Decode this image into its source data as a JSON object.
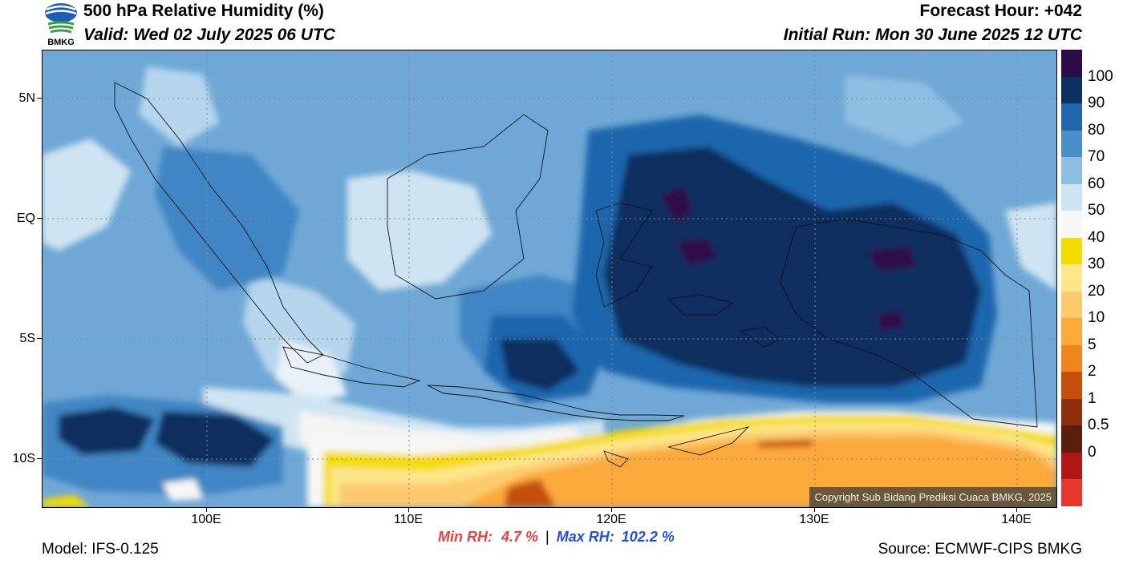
{
  "header": {
    "title": "500 hPa Relative Humidity (%)",
    "valid": "Valid: Wed 02 July 2025 06 UTC",
    "forecast_hour": "Forecast Hour: +042",
    "initial_run": "Initial Run: Mon 30 June 2025 12 UTC",
    "logo_text": "BMKG"
  },
  "map": {
    "lat_labels": [
      "5N",
      "EQ",
      "5S",
      "10S"
    ],
    "lon_labels": [
      "100E",
      "110E",
      "120E",
      "130E",
      "140E"
    ],
    "copyright": "Copyright Sub Bidang Prediksi Cuaca BMKG, 2025"
  },
  "colorbar": {
    "labels": [
      "100",
      "90",
      "80",
      "70",
      "60",
      "50",
      "40",
      "30",
      "20",
      "10",
      "5",
      "2",
      "1",
      "0.5",
      "0"
    ],
    "colors": [
      "#2d0b4a",
      "#0b2f5e",
      "#1f66ad",
      "#4a8fc9",
      "#8dbfe2",
      "#cfe4f2",
      "#f7f7f7",
      "#f5dc00",
      "#fde78a",
      "#fdcb6e",
      "#fca93a",
      "#f0841f",
      "#c4500c",
      "#8f2f0c",
      "#5a1f0b",
      "#b01616",
      "#e6382d"
    ]
  },
  "stats": {
    "min_label": "Min RH:",
    "min_value": "4.7 %",
    "separator": "|",
    "max_label": "Max RH:",
    "max_value": "102.2 %",
    "min_color": "#e84040",
    "max_color": "#2050e0"
  },
  "footer": {
    "model": "Model: IFS-0.125",
    "source": "Source: ECMWF-CIPS BMKG"
  }
}
